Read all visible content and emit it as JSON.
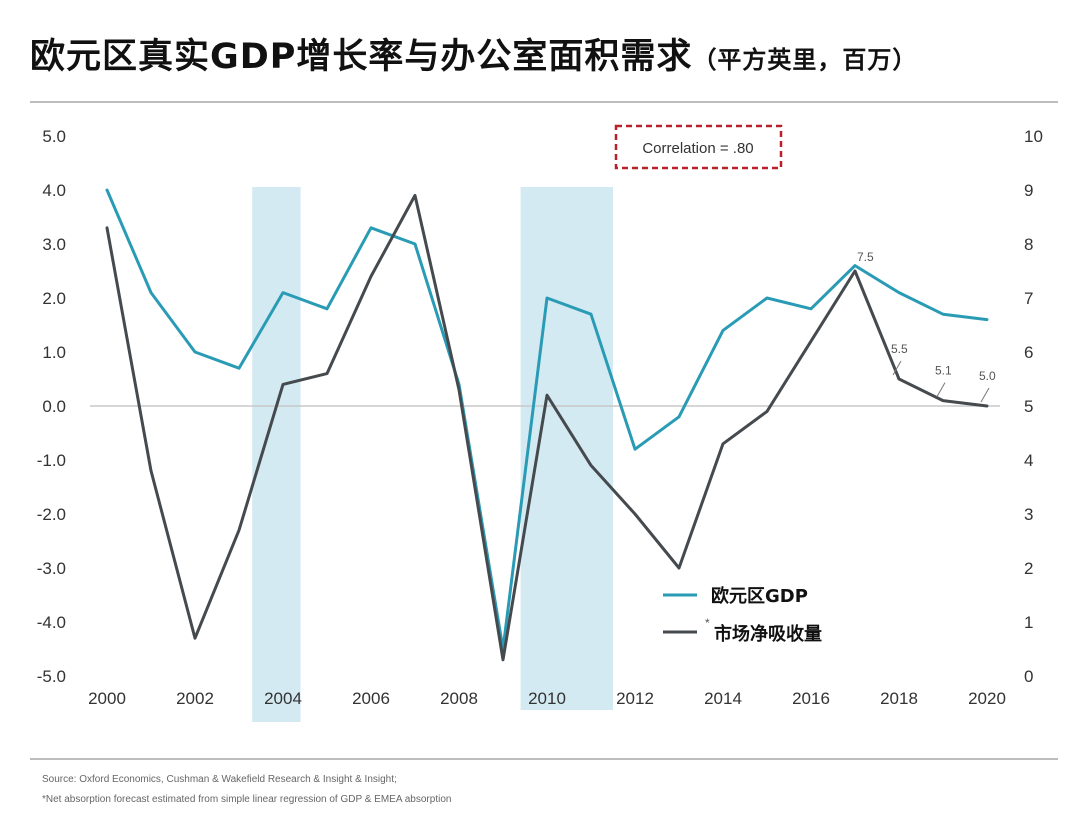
{
  "header": {
    "title_main": "欧元区真实GDP增长率与办公室面积需求",
    "title_sub": "（平方英里，百万）"
  },
  "colors": {
    "gdp": "#2a9bb5",
    "absorption": "#454a4f",
    "shade": "#d4eaf2",
    "correlation_box": "#b8202a",
    "zero_line": "#c8c8c8"
  },
  "chart_data": {
    "type": "line",
    "title": "欧元区真实GDP增长率与办公室面积需求（平方英里，百万）",
    "x": [
      2000,
      2001,
      2002,
      2003,
      2004,
      2005,
      2006,
      2007,
      2008,
      2009,
      2010,
      2011,
      2012,
      2013,
      2014,
      2015,
      2016,
      2017,
      2018,
      2019,
      2020
    ],
    "x_ticks": [
      "2000",
      "2002",
      "2004",
      "2006",
      "2008",
      "2010",
      "2012",
      "2014",
      "2016",
      "2018",
      "2020"
    ],
    "y_left_ticks": [
      "5.0",
      "4.0",
      "3.0",
      "2.0",
      "1.0",
      "0.0",
      "-1.0",
      "-2.0",
      "-3.0",
      "-4.0",
      "-5.0"
    ],
    "y_right_ticks": [
      "10",
      "9",
      "8",
      "7",
      "6",
      "5",
      "4",
      "3",
      "2",
      "1",
      "0"
    ],
    "ylim_left": [
      -5,
      5
    ],
    "ylim_right": [
      0,
      10
    ],
    "series": [
      {
        "name": "欧元区GDP",
        "axis": "left",
        "values": [
          4.0,
          2.1,
          1.0,
          0.7,
          2.1,
          1.8,
          3.3,
          3.0,
          0.4,
          -4.5,
          2.0,
          1.7,
          -0.8,
          -0.2,
          1.4,
          2.0,
          1.8,
          2.6,
          2.1,
          1.7,
          1.6
        ]
      },
      {
        "name": "市场净吸收量",
        "legend_mark": "*",
        "axis": "right",
        "values": [
          8.3,
          3.8,
          0.7,
          2.7,
          5.4,
          5.6,
          7.4,
          8.9,
          5.3,
          0.3,
          5.2,
          3.9,
          3.0,
          2.0,
          4.3,
          4.9,
          6.2,
          7.5,
          5.5,
          5.1,
          5.0
        ]
      }
    ],
    "shaded_periods": [
      {
        "from": 2003.3,
        "to": 2004.4
      },
      {
        "from": 2009.4,
        "to": 2011.5
      }
    ],
    "annotations": [
      {
        "text": "7.5",
        "x": 2017,
        "series": 1
      },
      {
        "text": "5.5",
        "x": 2018,
        "series": 1
      },
      {
        "text": "5.1",
        "x": 2019,
        "series": 1
      },
      {
        "text": "5.0",
        "x": 2020,
        "series": 1
      }
    ],
    "correlation_label": "Correlation = .80",
    "legend_position": "bottom-right"
  },
  "footer": {
    "source": "Source: Oxford Economics, Cushman & Wakefield Research & Insight & Insight;",
    "note": "*Net absorption forecast estimated from simple linear regression of GDP & EMEA absorption"
  }
}
